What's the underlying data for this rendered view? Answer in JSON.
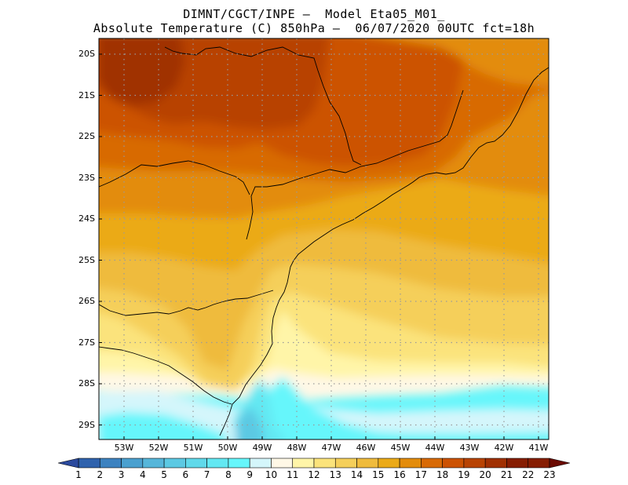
{
  "header": {
    "line1": "DIMNT/CGCT/INPE —  Model Eta05_M01_",
    "line2": "Absolute Temperature (C) 850hPa —  06/07/2020 00UTC fct=18h"
  },
  "axes": {
    "lat_labels": [
      "20S",
      "21S",
      "22S",
      "23S",
      "24S",
      "25S",
      "26S",
      "27S",
      "28S",
      "29S"
    ],
    "lon_labels": [
      "53W",
      "52W",
      "51W",
      "50W",
      "49W",
      "48W",
      "47W",
      "46W",
      "45W",
      "44W",
      "43W",
      "42W",
      "41W"
    ]
  },
  "colorbar": {
    "labels": [
      "1",
      "2",
      "3",
      "4",
      "5",
      "6",
      "7",
      "8",
      "9",
      "10",
      "11",
      "12",
      "13",
      "14",
      "15",
      "16",
      "17",
      "18",
      "19",
      "20",
      "21",
      "22",
      "23"
    ],
    "colors": [
      "#2b4a9e",
      "#2f62ad",
      "#3c82c0",
      "#4aa0cf",
      "#56b6da",
      "#5cc9e3",
      "#60d9ea",
      "#63e8f2",
      "#66f6fb",
      "#d4f6fb",
      "#fff8e6",
      "#fff5a8",
      "#fbe37b",
      "#f5cf5a",
      "#efbb3c",
      "#ebaa18",
      "#e38c0c",
      "#d86a06",
      "#cc5203",
      "#b84303",
      "#a03002",
      "#861d02",
      "#6b0a02"
    ]
  }
}
